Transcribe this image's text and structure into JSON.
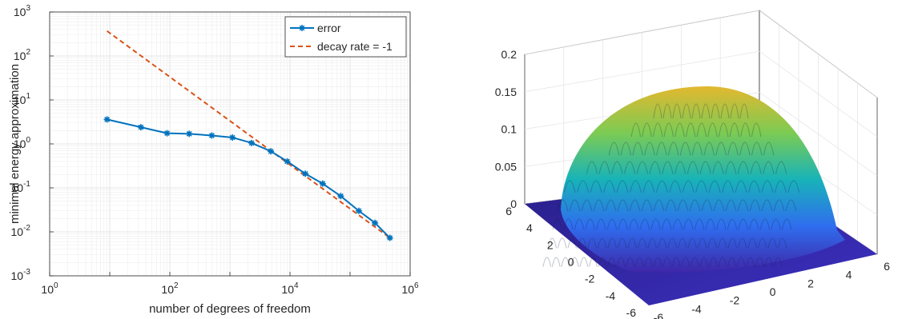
{
  "chart_data": [
    {
      "type": "line",
      "xscale": "log",
      "yscale": "log",
      "xlabel": "number of degrees of freedom",
      "ylabel": "minimal energy approximation",
      "xlim": [
        1,
        1000000
      ],
      "ylim": [
        0.001,
        1000
      ],
      "xticks": [
        {
          "base": "10",
          "exp": "0"
        },
        {
          "base": "10",
          "exp": "2"
        },
        {
          "base": "10",
          "exp": "4"
        },
        {
          "base": "10",
          "exp": "6"
        }
      ],
      "yticks": [
        {
          "base": "10",
          "exp": "-3"
        },
        {
          "base": "10",
          "exp": "-2"
        },
        {
          "base": "10",
          "exp": "-1"
        },
        {
          "base": "10",
          "exp": "0"
        },
        {
          "base": "10",
          "exp": "1"
        },
        {
          "base": "10",
          "exp": "2"
        },
        {
          "base": "10",
          "exp": "3"
        }
      ],
      "grid": true,
      "legend_position": "top-right",
      "series": [
        {
          "name": "error",
          "style": "solid-line-asterisk-markers",
          "color": "#0072BD",
          "x": [
            9,
            33,
            90,
            210,
            500,
            1100,
            2300,
            4800,
            9000,
            18000,
            35000,
            70000,
            140000,
            260000,
            460000
          ],
          "y": [
            3.6,
            2.4,
            1.75,
            1.7,
            1.55,
            1.4,
            1.05,
            0.68,
            0.4,
            0.21,
            0.125,
            0.065,
            0.03,
            0.016,
            0.0073
          ]
        },
        {
          "name": "decay rate = -1",
          "style": "dashed-line",
          "color": "#D95319",
          "x": [
            9,
            460000
          ],
          "y": [
            370,
            0.0073
          ]
        }
      ]
    },
    {
      "type": "surface",
      "zlim": [
        0,
        0.2
      ],
      "zticks": [
        "0",
        "0.05",
        "0.1",
        "0.15",
        "0.2"
      ],
      "xticks": [
        "-6",
        "-4",
        "-2",
        "0",
        "2",
        "4",
        "6"
      ],
      "yticks": [
        "-6",
        "-4",
        "-2",
        "0",
        "2",
        "4",
        "6"
      ],
      "grid": true,
      "colormap": [
        "#3E26A8",
        "#2F6EEF",
        "#18B3B8",
        "#7CCB53",
        "#E3B82F"
      ]
    }
  ]
}
